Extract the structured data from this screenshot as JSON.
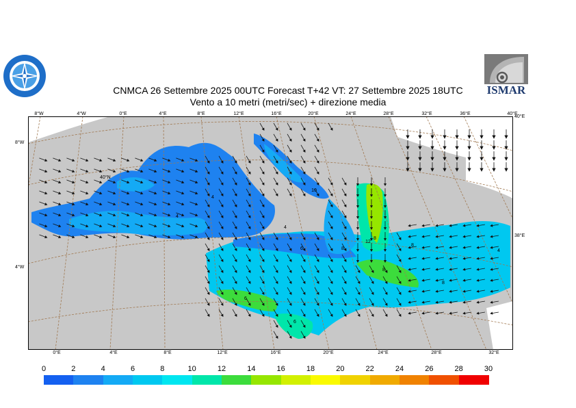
{
  "title": {
    "line1": "CNMCA 26 Settembre 2025 00UTC Forecast T+42 VT: 27 Settembre 2025 18UTC",
    "line2": "Vento a 10 metri (metri/sec) + direzione media"
  },
  "logos": {
    "left": "logo-cnmca",
    "right": "ISMAR"
  },
  "map_data": {
    "variable": "wind speed 10 m",
    "units": "m/s",
    "top_lon_labels": [
      "8°W",
      "4°W",
      "0°E",
      "4°E",
      "8°E",
      "12°E",
      "16°E",
      "20°E",
      "24°E",
      "28°E",
      "32°E",
      "36°E",
      "40°E"
    ],
    "bottom_lon_labels": [
      "0°E",
      "4°E",
      "8°E",
      "12°E",
      "16°E",
      "20°E",
      "24°E",
      "28°E",
      "32°E"
    ],
    "left_lat_labels": [
      "8°W",
      "4°W"
    ],
    "right_lat_labels": [
      "40°E",
      "38°E"
    ],
    "inner_label": "40°N",
    "contour_labels": [
      "4",
      "4",
      "6",
      "6",
      "6",
      "8",
      "8",
      "8",
      "4",
      "12",
      "8",
      "10",
      "8",
      "4"
    ],
    "colors": {
      "land": "#c8c8c8",
      "grid": "#a07850",
      "outside_land": "#ffffff"
    }
  },
  "colorbar": {
    "ticks": [
      "0",
      "2",
      "4",
      "6",
      "8",
      "10",
      "12",
      "14",
      "16",
      "18",
      "20",
      "22",
      "24",
      "26",
      "28",
      "30"
    ],
    "colors": [
      "#1460f0",
      "#1e82f0",
      "#14aaf5",
      "#00c8f0",
      "#00e6f0",
      "#00e6aa",
      "#3cdc3c",
      "#96e600",
      "#d2f000",
      "#fafa00",
      "#f0d200",
      "#f0aa00",
      "#f08200",
      "#f05000",
      "#f00000"
    ]
  }
}
